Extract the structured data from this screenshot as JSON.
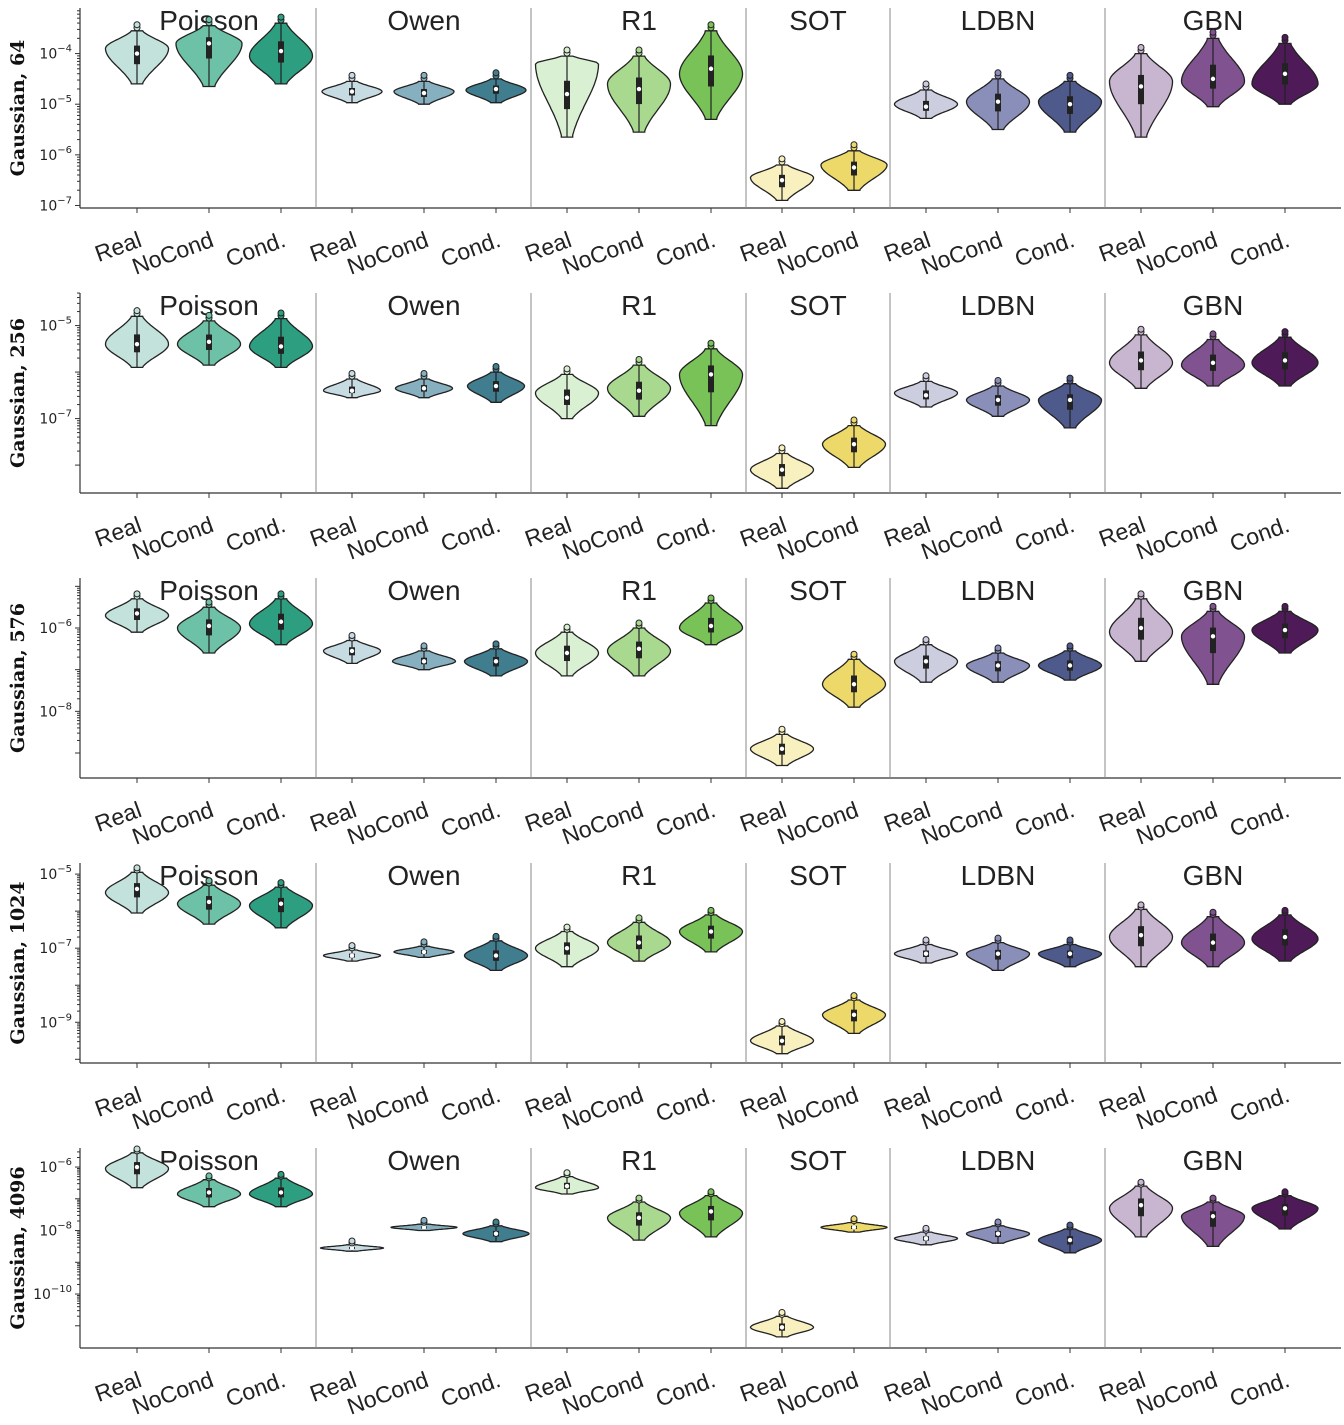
{
  "chart_data": {
    "type": "violin",
    "groups": [
      "Poisson",
      "Owen",
      "R1",
      "SOT",
      "LDBN",
      "GBN"
    ],
    "categories": [
      "Real",
      "NoCond",
      "Cond."
    ],
    "group_categories": {
      "Poisson": [
        "Real",
        "NoCond",
        "Cond."
      ],
      "Owen": [
        "Real",
        "NoCond",
        "Cond."
      ],
      "R1": [
        "Real",
        "NoCond",
        "Cond."
      ],
      "SOT": [
        "Real",
        "NoCond"
      ],
      "LDBN": [
        "Real",
        "NoCond",
        "Cond."
      ],
      "GBN": [
        "Real",
        "NoCond",
        "Cond."
      ]
    },
    "colors": {
      "Poisson": [
        "#c3e2db",
        "#6cc1a7",
        "#2e9e80"
      ],
      "Owen": [
        "#c7dbe2",
        "#86b0bf",
        "#3f7d8f"
      ],
      "R1": [
        "#d9f1d2",
        "#a8d98f",
        "#78c257"
      ],
      "SOT": [
        "#f8f0bf",
        "#ecd96a"
      ],
      "LDBN": [
        "#cdcde0",
        "#8a8fb9",
        "#4e598c"
      ],
      "GBN": [
        "#c8b6d0",
        "#805290",
        "#4e1a58"
      ]
    },
    "y_scale": "log",
    "rows": [
      {
        "label": "Gaussian, 64",
        "yticks": [
          "10^{-7}",
          "10^{-6}",
          "10^{-5}",
          "10^{-4}"
        ],
        "ylim_log10": [
          -7.05,
          -3.1
        ],
        "series": {
          "Poisson": [
            {
              "med": -4.0,
              "lo": -4.6,
              "hi": -3.55,
              "peak": -3.9,
              "w": 0.42
            },
            {
              "med": -3.8,
              "lo": -4.65,
              "hi": -3.45,
              "peak": -3.8,
              "w": 0.44
            },
            {
              "med": -3.95,
              "lo": -4.6,
              "hi": -3.4,
              "peak": -4.05,
              "w": 0.42
            }
          ],
          "Owen": [
            {
              "med": -4.75,
              "lo": -4.97,
              "hi": -4.55,
              "peak": -4.75,
              "w": 0.4
            },
            {
              "med": -4.78,
              "lo": -5.0,
              "hi": -4.55,
              "peak": -4.75,
              "w": 0.4
            },
            {
              "med": -4.7,
              "lo": -4.97,
              "hi": -4.5,
              "peak": -4.72,
              "w": 0.4
            }
          ],
          "R1": [
            {
              "med": -4.8,
              "lo": -5.65,
              "hi": -4.05,
              "peak": -4.2,
              "w": 0.42
            },
            {
              "med": -4.7,
              "lo": -5.55,
              "hi": -4.05,
              "peak": -4.6,
              "w": 0.42
            },
            {
              "med": -4.3,
              "lo": -5.3,
              "hi": -3.55,
              "peak": -4.4,
              "w": 0.42
            }
          ],
          "SOT": [
            {
              "med": -6.5,
              "lo": -6.9,
              "hi": -6.2,
              "peak": -6.45,
              "w": 0.42
            },
            {
              "med": -6.25,
              "lo": -6.7,
              "hi": -5.92,
              "peak": -6.2,
              "w": 0.44
            }
          ],
          "LDBN": [
            {
              "med": -5.05,
              "lo": -5.28,
              "hi": -4.72,
              "peak": -5.0,
              "w": 0.42
            },
            {
              "med": -4.95,
              "lo": -5.5,
              "hi": -4.5,
              "peak": -4.95,
              "w": 0.42
            },
            {
              "med": -5.0,
              "lo": -5.55,
              "hi": -4.55,
              "peak": -4.95,
              "w": 0.42
            }
          ],
          "GBN": [
            {
              "med": -4.65,
              "lo": -5.65,
              "hi": -4.0,
              "peak": -4.55,
              "w": 0.42
            },
            {
              "med": -4.5,
              "lo": -5.05,
              "hi": -3.7,
              "peak": -4.55,
              "w": 0.42
            },
            {
              "med": -4.4,
              "lo": -5.0,
              "hi": -3.8,
              "peak": -4.6,
              "w": 0.44
            }
          ]
        }
      },
      {
        "label": "Gaussian, 256",
        "yticks": [
          "10^{-7}",
          "10^{-5}"
        ],
        "ylim_log10": [
          -8.6,
          -4.3
        ],
        "series": {
          "Poisson": [
            {
              "med": -5.4,
              "lo": -5.9,
              "hi": -4.8,
              "peak": -5.4,
              "w": 0.42
            },
            {
              "med": -5.35,
              "lo": -5.85,
              "hi": -4.9,
              "peak": -5.4,
              "w": 0.42
            },
            {
              "med": -5.45,
              "lo": -5.9,
              "hi": -4.85,
              "peak": -5.45,
              "w": 0.42
            }
          ],
          "Owen": [
            {
              "med": -6.4,
              "lo": -6.55,
              "hi": -6.15,
              "peak": -6.4,
              "w": 0.38
            },
            {
              "med": -6.35,
              "lo": -6.55,
              "hi": -6.15,
              "peak": -6.35,
              "w": 0.38
            },
            {
              "med": -6.3,
              "lo": -6.65,
              "hi": -6.0,
              "peak": -6.3,
              "w": 0.38
            }
          ],
          "R1": [
            {
              "med": -6.55,
              "lo": -7.0,
              "hi": -6.05,
              "peak": -6.45,
              "w": 0.42
            },
            {
              "med": -6.4,
              "lo": -6.95,
              "hi": -5.85,
              "peak": -6.35,
              "w": 0.42
            },
            {
              "med": -6.05,
              "lo": -7.15,
              "hi": -5.5,
              "peak": -6.05,
              "w": 0.42
            }
          ],
          "SOT": [
            {
              "med": -8.1,
              "lo": -8.5,
              "hi": -7.75,
              "peak": -8.1,
              "w": 0.42
            },
            {
              "med": -7.55,
              "lo": -8.05,
              "hi": -7.15,
              "peak": -7.55,
              "w": 0.42
            }
          ],
          "LDBN": [
            {
              "med": -6.5,
              "lo": -6.75,
              "hi": -6.2,
              "peak": -6.45,
              "w": 0.42
            },
            {
              "med": -6.6,
              "lo": -6.95,
              "hi": -6.3,
              "peak": -6.6,
              "w": 0.42
            },
            {
              "med": -6.6,
              "lo": -7.2,
              "hi": -6.25,
              "peak": -6.6,
              "w": 0.42
            }
          ],
          "GBN": [
            {
              "med": -5.75,
              "lo": -6.35,
              "hi": -5.2,
              "peak": -5.8,
              "w": 0.42
            },
            {
              "med": -5.8,
              "lo": -6.3,
              "hi": -5.3,
              "peak": -5.85,
              "w": 0.42
            },
            {
              "med": -5.75,
              "lo": -6.3,
              "hi": -5.25,
              "peak": -5.8,
              "w": 0.44
            }
          ]
        }
      },
      {
        "label": "Gaussian, 576",
        "yticks": [
          "10^{-8}",
          "10^{-6}"
        ],
        "ylim_log10": [
          -9.6,
          -4.8
        ],
        "series": {
          "Poisson": [
            {
              "med": -5.65,
              "lo": -6.1,
              "hi": -5.3,
              "peak": -5.7,
              "w": 0.42
            },
            {
              "med": -5.95,
              "lo": -6.6,
              "hi": -5.5,
              "peak": -6.0,
              "w": 0.42
            },
            {
              "med": -5.85,
              "lo": -6.4,
              "hi": -5.3,
              "peak": -5.9,
              "w": 0.42
            }
          ],
          "Owen": [
            {
              "med": -6.55,
              "lo": -6.85,
              "hi": -6.3,
              "peak": -6.55,
              "w": 0.38
            },
            {
              "med": -6.8,
              "lo": -7.0,
              "hi": -6.55,
              "peak": -6.8,
              "w": 0.42
            },
            {
              "med": -6.8,
              "lo": -7.15,
              "hi": -6.5,
              "peak": -6.8,
              "w": 0.42
            }
          ],
          "R1": [
            {
              "med": -6.6,
              "lo": -7.15,
              "hi": -6.1,
              "peak": -6.6,
              "w": 0.42
            },
            {
              "med": -6.5,
              "lo": -7.15,
              "hi": -6.0,
              "peak": -6.55,
              "w": 0.42
            },
            {
              "med": -5.95,
              "lo": -6.4,
              "hi": -5.4,
              "peak": -6.0,
              "w": 0.42
            }
          ],
          "SOT": [
            {
              "med": -8.9,
              "lo": -9.3,
              "hi": -8.55,
              "peak": -8.9,
              "w": 0.42
            },
            {
              "med": -7.35,
              "lo": -7.9,
              "hi": -6.75,
              "peak": -7.35,
              "w": 0.42
            }
          ],
          "LDBN": [
            {
              "med": -6.8,
              "lo": -7.3,
              "hi": -6.4,
              "peak": -6.8,
              "w": 0.42
            },
            {
              "med": -6.9,
              "lo": -7.3,
              "hi": -6.6,
              "peak": -6.9,
              "w": 0.42
            },
            {
              "med": -6.9,
              "lo": -7.25,
              "hi": -6.55,
              "peak": -6.9,
              "w": 0.42
            }
          ],
          "GBN": [
            {
              "med": -6.0,
              "lo": -6.8,
              "hi": -5.3,
              "peak": -6.1,
              "w": 0.42
            },
            {
              "med": -6.2,
              "lo": -7.35,
              "hi": -5.6,
              "peak": -6.2,
              "w": 0.42
            },
            {
              "med": -6.05,
              "lo": -6.6,
              "hi": -5.6,
              "peak": -6.05,
              "w": 0.44
            }
          ]
        }
      },
      {
        "label": "Gaussian, 1024",
        "yticks": [
          "10^{-9}",
          "10^{-7}",
          "10^{-5}"
        ],
        "ylim_log10": [
          -10.1,
          -4.7
        ],
        "series": {
          "Poisson": [
            {
              "med": -5.4,
              "lo": -6.05,
              "hi": -4.95,
              "peak": -5.5,
              "w": 0.42
            },
            {
              "med": -5.75,
              "lo": -6.35,
              "hi": -5.3,
              "peak": -5.8,
              "w": 0.42
            },
            {
              "med": -5.8,
              "lo": -6.45,
              "hi": -5.35,
              "peak": -5.85,
              "w": 0.42
            }
          ],
          "Owen": [
            {
              "med": -7.2,
              "lo": -7.35,
              "hi": -7.05,
              "peak": -7.2,
              "w": 0.38
            },
            {
              "med": -7.1,
              "lo": -7.25,
              "hi": -6.95,
              "peak": -7.1,
              "w": 0.4
            },
            {
              "med": -7.2,
              "lo": -7.6,
              "hi": -6.8,
              "peak": -7.2,
              "w": 0.42
            }
          ],
          "R1": [
            {
              "med": -7.0,
              "lo": -7.5,
              "hi": -6.55,
              "peak": -7.0,
              "w": 0.42
            },
            {
              "med": -6.85,
              "lo": -7.35,
              "hi": -6.3,
              "peak": -6.85,
              "w": 0.42
            },
            {
              "med": -6.55,
              "lo": -7.1,
              "hi": -6.1,
              "peak": -6.55,
              "w": 0.42
            }
          ],
          "SOT": [
            {
              "med": -9.5,
              "lo": -9.85,
              "hi": -9.1,
              "peak": -9.5,
              "w": 0.42
            },
            {
              "med": -8.8,
              "lo": -9.3,
              "hi": -8.4,
              "peak": -8.8,
              "w": 0.42
            }
          ],
          "LDBN": [
            {
              "med": -7.15,
              "lo": -7.4,
              "hi": -6.9,
              "peak": -7.15,
              "w": 0.42
            },
            {
              "med": -7.15,
              "lo": -7.6,
              "hi": -6.85,
              "peak": -7.15,
              "w": 0.42
            },
            {
              "med": -7.15,
              "lo": -7.5,
              "hi": -6.9,
              "peak": -7.15,
              "w": 0.42
            }
          ],
          "GBN": [
            {
              "med": -6.65,
              "lo": -7.5,
              "hi": -5.95,
              "peak": -6.7,
              "w": 0.42
            },
            {
              "med": -6.85,
              "lo": -7.5,
              "hi": -6.15,
              "peak": -6.85,
              "w": 0.42
            },
            {
              "med": -6.7,
              "lo": -7.35,
              "hi": -6.1,
              "peak": -6.75,
              "w": 0.44
            }
          ]
        }
      },
      {
        "label": "Gaussian, 4096",
        "yticks": [
          "10^{-10}",
          "10^{-8}",
          "10^{-6}"
        ],
        "ylim_log10": [
          -11.7,
          -5.4
        ],
        "series": {
          "Poisson": [
            {
              "med": -6.0,
              "lo": -6.65,
              "hi": -5.55,
              "peak": -6.05,
              "w": 0.42
            },
            {
              "med": -6.8,
              "lo": -7.25,
              "hi": -6.4,
              "peak": -6.85,
              "w": 0.42
            },
            {
              "med": -6.8,
              "lo": -7.25,
              "hi": -6.35,
              "peak": -6.85,
              "w": 0.42
            }
          ],
          "Owen": [
            {
              "med": -8.55,
              "lo": -8.65,
              "hi": -8.45,
              "peak": -8.55,
              "w": 0.42
            },
            {
              "med": -7.9,
              "lo": -8.0,
              "hi": -7.8,
              "peak": -7.9,
              "w": 0.44
            },
            {
              "med": -8.1,
              "lo": -8.35,
              "hi": -7.85,
              "peak": -8.1,
              "w": 0.44
            }
          ],
          "R1": [
            {
              "med": -6.6,
              "lo": -6.85,
              "hi": -6.3,
              "peak": -6.65,
              "w": 0.42
            },
            {
              "med": -7.6,
              "lo": -8.3,
              "hi": -7.1,
              "peak": -7.6,
              "w": 0.42
            },
            {
              "med": -7.4,
              "lo": -8.2,
              "hi": -6.9,
              "peak": -7.45,
              "w": 0.42
            }
          ],
          "SOT": [
            {
              "med": -11.05,
              "lo": -11.35,
              "hi": -10.7,
              "peak": -11.05,
              "w": 0.42
            },
            {
              "med": -7.9,
              "lo": -8.05,
              "hi": -7.75,
              "peak": -7.9,
              "w": 0.44
            }
          ],
          "LDBN": [
            {
              "med": -8.25,
              "lo": -8.45,
              "hi": -8.05,
              "peak": -8.25,
              "w": 0.42
            },
            {
              "med": -8.1,
              "lo": -8.4,
              "hi": -7.85,
              "peak": -8.1,
              "w": 0.42
            },
            {
              "med": -8.3,
              "lo": -8.7,
              "hi": -7.95,
              "peak": -8.3,
              "w": 0.42
            }
          ],
          "GBN": [
            {
              "med": -7.2,
              "lo": -8.2,
              "hi": -6.6,
              "peak": -7.3,
              "w": 0.42
            },
            {
              "med": -7.55,
              "lo": -8.5,
              "hi": -7.1,
              "peak": -7.55,
              "w": 0.42
            },
            {
              "med": -7.3,
              "lo": -7.95,
              "hi": -6.9,
              "peak": -7.3,
              "w": 0.44
            }
          ]
        }
      }
    ]
  }
}
